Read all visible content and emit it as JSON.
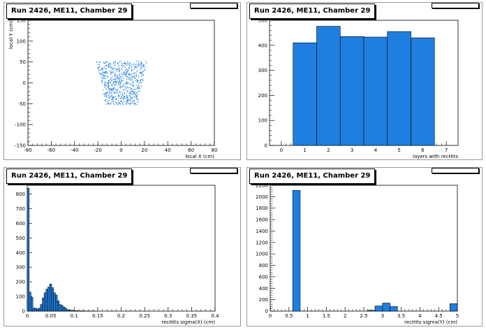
{
  "chart_data": [
    {
      "type": "scatter",
      "title": "Run 2426, ME11, Chamber 29",
      "xlabel": "local X (cm)",
      "ylabel": "local Y (cm)",
      "xlim": [
        -80,
        80
      ],
      "ylim": [
        -150,
        150
      ],
      "xticks": [
        -80,
        -60,
        -40,
        -20,
        0,
        20,
        40,
        60,
        80
      ],
      "yticks": [
        -150,
        -100,
        -50,
        0,
        50,
        100,
        150
      ],
      "color": "#1f7fe0",
      "region": {
        "y": [
          -52,
          53
        ],
        "x_at_bottom": [
          -14,
          14
        ],
        "x_at_top": [
          -22,
          22
        ]
      }
    },
    {
      "type": "bar",
      "title": "Run 2426, ME11, Chamber 29",
      "xlabel": "layers with recHits",
      "ylabel": "",
      "xlim": [
        -0.5,
        7.5
      ],
      "ylim": [
        0,
        500
      ],
      "xticks": [
        0,
        1,
        2,
        3,
        4,
        5,
        6,
        7
      ],
      "yticks": [
        0,
        100,
        200,
        300,
        400,
        500
      ],
      "bin_width": 1,
      "x": [
        1,
        2,
        3,
        4,
        5,
        6
      ],
      "values": [
        410,
        476,
        435,
        433,
        455,
        430
      ],
      "color": "#1f7fe0"
    },
    {
      "type": "bar",
      "title": "Run 2426, ME11, Chamber 29",
      "xlabel": "recHits sigma(X) (cm)",
      "ylabel": "",
      "xlim": [
        0,
        0.4
      ],
      "ylim": [
        0,
        860
      ],
      "xticks": [
        0,
        0.05,
        0.1,
        0.15,
        0.2,
        0.25,
        0.3,
        0.35,
        0.4
      ],
      "xtick_labels": [
        "0",
        "0.05",
        "0.1",
        "0.15",
        "0.2",
        "0.25",
        "0.3",
        "0.35",
        "0.4"
      ],
      "yticks": [
        0,
        100,
        200,
        300,
        400,
        500,
        600,
        700,
        800
      ],
      "bin_width": 0.004,
      "x": [
        0.002,
        0.006,
        0.01,
        0.014,
        0.018,
        0.022,
        0.026,
        0.03,
        0.034,
        0.038,
        0.042,
        0.046,
        0.05,
        0.054,
        0.058,
        0.062,
        0.066,
        0.07,
        0.074,
        0.078,
        0.082,
        0.086,
        0.09,
        0.094,
        0.098,
        0.102,
        0.106,
        0.11,
        0.114,
        0.118,
        0.122,
        0.126,
        0.13,
        0.134,
        0.138,
        0.142
      ],
      "values": [
        840,
        130,
        95,
        20,
        20,
        15,
        20,
        45,
        90,
        125,
        150,
        165,
        185,
        160,
        125,
        110,
        70,
        45,
        40,
        28,
        20,
        10,
        8,
        6,
        5,
        3,
        3,
        2,
        2,
        2,
        2,
        1,
        1,
        1,
        1,
        1
      ],
      "color": "#1f7fe0"
    },
    {
      "type": "bar",
      "title": "Run 2426, ME11, Chamber 29",
      "xlabel": "recHits sigma(Y) (cm)",
      "ylabel": "",
      "xlim": [
        0,
        5
      ],
      "ylim": [
        0,
        2200
      ],
      "xticks": [
        0,
        0.5,
        1,
        1.5,
        2,
        2.5,
        3,
        3.5,
        4,
        4.5,
        5
      ],
      "xtick_labels": [
        "0",
        "0.5",
        "1",
        "1.5",
        "2",
        "2.5",
        "3",
        "3.5",
        "4",
        "4.5",
        "5"
      ],
      "yticks": [
        0,
        200,
        400,
        600,
        800,
        1000,
        1200,
        1400,
        1600,
        1800,
        2000,
        2200
      ],
      "bin_width": 0.2,
      "x": [
        0.7,
        2.7,
        2.9,
        3.1,
        3.3,
        4.9
      ],
      "values": [
        2110,
        15,
        90,
        140,
        80,
        130
      ],
      "color": "#1f7fe0"
    }
  ]
}
